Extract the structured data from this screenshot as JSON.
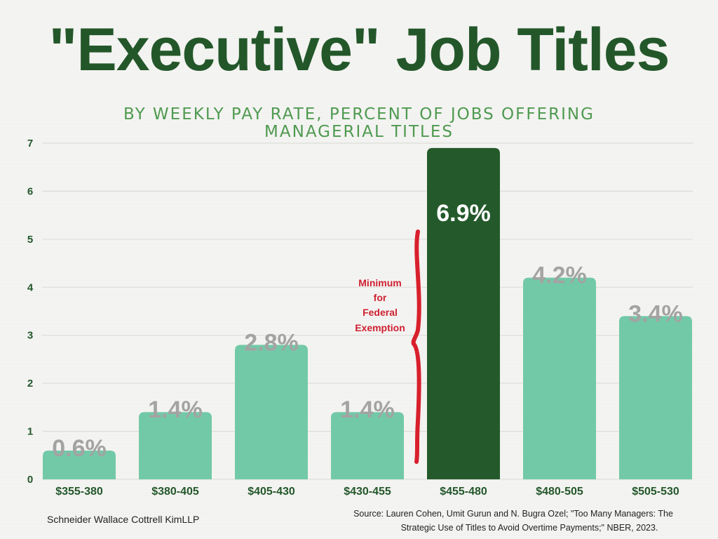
{
  "chart_data": {
    "type": "bar",
    "title": "\"Executive\" Job Titles",
    "subtitle_lines": [
      "BY WEEKLY PAY RATE, PERCENT OF JOBS OFFERING",
      "MANAGERIAL TITLES"
    ],
    "categories": [
      "$355-380",
      "$380-405",
      "$405-430",
      "$430-455",
      "$455-480",
      "$480-505",
      "$505-530"
    ],
    "values": [
      0.6,
      1.4,
      2.8,
      1.4,
      6.9,
      4.2,
      3.4
    ],
    "data_labels": [
      "0.6%",
      "1.4%",
      "2.8%",
      "1.4%",
      "6.9%",
      "4.2%",
      "3.4%"
    ],
    "highlight_index": 4,
    "ylim": [
      0,
      7
    ],
    "yticks": [
      0,
      1,
      2,
      3,
      4,
      5,
      6,
      7
    ],
    "grid": true,
    "xlabel": "",
    "ylabel": "",
    "colors": {
      "bar": "#72c9a8",
      "highlight": "#245a2b",
      "label": "#a3a3a3",
      "annotation": "#cf2030",
      "title": "#23572a",
      "subtitle": "#4f9a50"
    },
    "annotation": {
      "lines": [
        "Minimum",
        "for",
        "Federal",
        "Exemption"
      ]
    }
  },
  "footer": {
    "credit": "Schneider Wallace Cottrell KimLLP",
    "source_lines": [
      "Source: Lauren Cohen, Umit Gurun and N. Bugra Ozel; \"Too Many Managers: The",
      "Strategic Use of Titles to Avoid Overtime Payments;\" NBER, 2023."
    ]
  }
}
